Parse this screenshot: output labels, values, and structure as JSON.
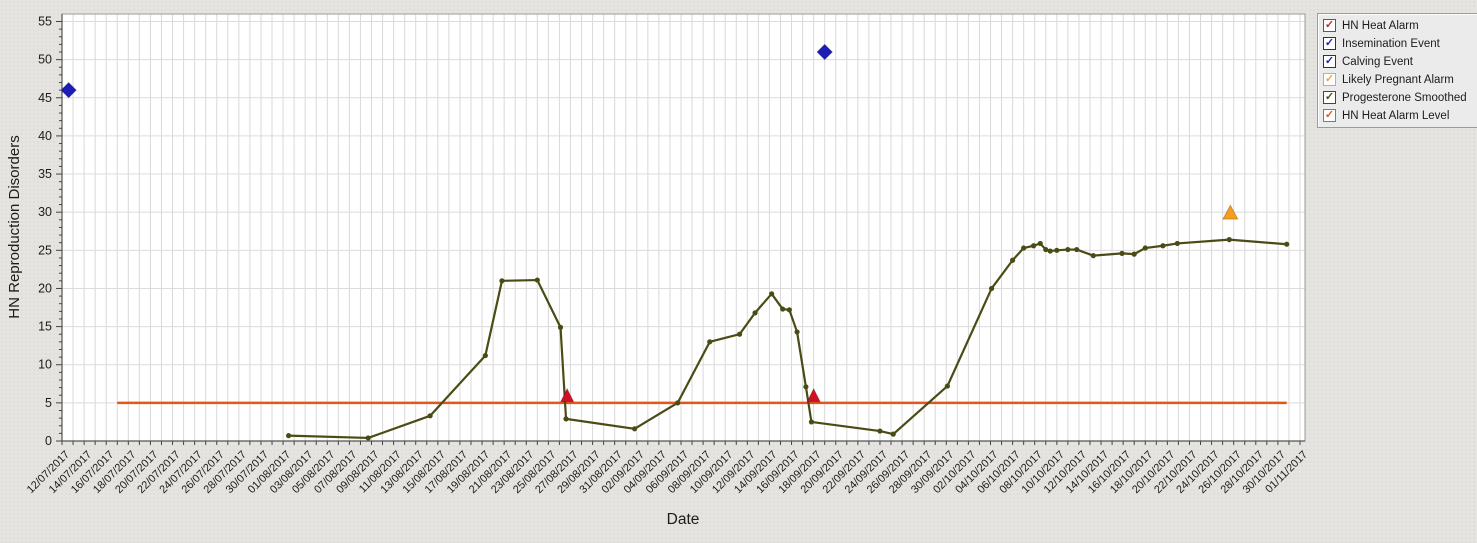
{
  "colors": {
    "background": "#e5e4e1",
    "plot_background": "#ffffff",
    "grid_vertical": "#d9d9d9",
    "grid_horizontal": "#dcdcdc",
    "frame": "#9b9b9b",
    "axis": "#555555",
    "tick": "#444444",
    "text": "#1c1c1c",
    "progesterone_line": "#4b4b15",
    "alarm_level_line": "#e2581c",
    "heat_alarm_marker": "#d01023",
    "event_marker": "#1c1cb8",
    "likely_pregnant_marker": "#f59d1d"
  },
  "legend": {
    "check_glyph": "✓",
    "items": [
      {
        "label": "HN Heat Alarm",
        "color": "#c42b2b",
        "checked": true
      },
      {
        "label": "Insemination Event",
        "color": "#2121bb",
        "checked": true
      },
      {
        "label": "Calving Event",
        "color": "#2121bb",
        "checked": true
      },
      {
        "label": "Likely Pregnant Alarm",
        "color": "#f2a33c",
        "checked": true
      },
      {
        "label": "Progesterone Smoothed",
        "color": "#4b4b15",
        "checked": true
      },
      {
        "label": "HN Heat Alarm Level",
        "color": "#d95b1e",
        "checked": true
      }
    ]
  },
  "chart_data": {
    "type": "line",
    "xlabel": "Date",
    "ylabel": "HN Reproduction Disorders",
    "ylim": [
      0,
      55
    ],
    "y_tick_step": 5,
    "grid": true,
    "legend_position": "top-right",
    "x_unit": "days since 12/07/2017",
    "x_range_days": [
      0,
      112
    ],
    "x_tick_interval_days": 2,
    "x_tick_labels": [
      "12/07/2017",
      "14/07/2017",
      "16/07/2017",
      "18/07/2017",
      "20/07/2017",
      "22/07/2017",
      "24/07/2017",
      "26/07/2017",
      "28/07/2017",
      "30/07/2017",
      "01/08/2017",
      "03/08/2017",
      "05/08/2017",
      "07/08/2017",
      "09/08/2017",
      "11/08/2017",
      "13/08/2017",
      "15/08/2017",
      "17/08/2017",
      "19/08/2017",
      "21/08/2017",
      "23/08/2017",
      "25/08/2017",
      "27/08/2017",
      "29/08/2017",
      "31/08/2017",
      "02/09/2017",
      "04/09/2017",
      "06/09/2017",
      "08/09/2017",
      "10/09/2017",
      "12/09/2017",
      "14/09/2017",
      "16/09/2017",
      "18/09/2017",
      "20/09/2017",
      "22/09/2017",
      "24/09/2017",
      "26/09/2017",
      "28/09/2017",
      "30/09/2017",
      "02/10/2017",
      "04/10/2017",
      "06/10/2017",
      "08/10/2017",
      "10/10/2017",
      "12/10/2017",
      "14/10/2017",
      "16/10/2017",
      "18/10/2017",
      "20/10/2017",
      "22/10/2017",
      "24/10/2017",
      "26/10/2017",
      "28/10/2017",
      "30/10/2017",
      "01/11/2017"
    ],
    "series": [
      {
        "name": "Progesterone Smoothed",
        "mark": "line-with-dots",
        "points": [
          [
            20.5,
            0.7
          ],
          [
            27.7,
            0.4
          ],
          [
            33.3,
            3.3
          ],
          [
            38.3,
            11.2
          ],
          [
            39.8,
            21.0
          ],
          [
            43.0,
            21.1
          ],
          [
            45.1,
            14.9
          ],
          [
            45.6,
            2.9
          ],
          [
            51.8,
            1.6
          ],
          [
            55.7,
            5.0
          ],
          [
            58.6,
            13.0
          ],
          [
            61.3,
            14.0
          ],
          [
            62.7,
            16.8
          ],
          [
            64.2,
            19.3
          ],
          [
            65.2,
            17.3
          ],
          [
            65.8,
            17.2
          ],
          [
            66.5,
            14.3
          ],
          [
            67.3,
            7.1
          ],
          [
            67.8,
            2.5
          ],
          [
            74.0,
            1.3
          ],
          [
            75.2,
            0.9
          ],
          [
            80.1,
            7.2
          ],
          [
            84.1,
            20.0
          ],
          [
            86.0,
            23.7
          ],
          [
            87.0,
            25.3
          ],
          [
            87.9,
            25.6
          ],
          [
            88.5,
            25.9
          ],
          [
            89.0,
            25.1
          ],
          [
            89.4,
            24.9
          ],
          [
            90.0,
            25.0
          ],
          [
            91.0,
            25.1
          ],
          [
            91.8,
            25.1
          ],
          [
            93.3,
            24.3
          ],
          [
            95.9,
            24.6
          ],
          [
            97.0,
            24.5
          ],
          [
            98.0,
            25.3
          ],
          [
            99.6,
            25.6
          ],
          [
            100.9,
            25.9
          ],
          [
            105.6,
            26.4
          ],
          [
            110.8,
            25.8
          ]
        ]
      },
      {
        "name": "HN Heat Alarm Level",
        "mark": "hline",
        "value": 5,
        "span_days": [
          5.0,
          110.8
        ]
      },
      {
        "name": "HN Heat Alarm",
        "mark": "triangle",
        "dates": [
          "27/08/2017",
          "18/09/2017"
        ],
        "points": [
          [
            45.7,
            6
          ],
          [
            68.0,
            6
          ]
        ]
      },
      {
        "name": "Calving Event",
        "mark": "diamond",
        "dates": [
          "12/07/2017"
        ],
        "points": [
          [
            0.6,
            46
          ]
        ]
      },
      {
        "name": "Insemination Event",
        "mark": "diamond",
        "dates": [
          "19/09/2017"
        ],
        "points": [
          [
            69.0,
            51
          ]
        ]
      },
      {
        "name": "Likely Pregnant Alarm",
        "mark": "triangle",
        "dates": [
          "26/10/2017"
        ],
        "points": [
          [
            105.7,
            30
          ]
        ]
      }
    ]
  }
}
